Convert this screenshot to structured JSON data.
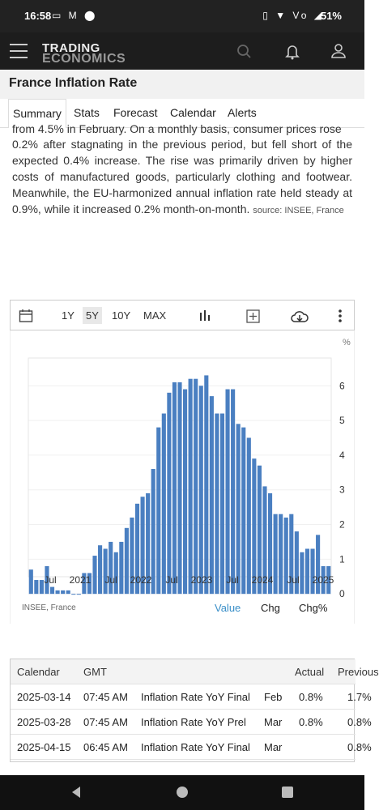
{
  "status": {
    "time": "16:58",
    "battery": "51%",
    "left_icons": "▭ M ⬤",
    "right_icons": "▯ ▼ Vo ◢"
  },
  "app": {
    "logo_line1": "TRADING",
    "logo_line2": "ECONOMICS"
  },
  "page": {
    "title": "France Inflation Rate"
  },
  "tabs": [
    "Summary",
    "Stats",
    "Forecast",
    "Calendar",
    "Alerts"
  ],
  "article": {
    "first_line": "from 4.5% in February. On a monthly basis, consumer prices rose",
    "body": "0.2% after stagnating in the previous period, but fell short of the expected 0.4% increase. The rise was primarily driven by higher costs of manufactured goods, particularly clothing and footwear. Meanwhile, the EU-harmonized annual inflation rate held steady at 0.9%, while it increased 0.2% month-on-month.",
    "source": "source: INSEE, France"
  },
  "chart_toolbar": {
    "r1": "1Y",
    "r5": "5Y",
    "r10": "10Y",
    "rmax": "MAX"
  },
  "chart_footer": {
    "source": "INSEE, France",
    "value": "Value",
    "chg": "Chg",
    "chgpct": "Chg%"
  },
  "chart_data": {
    "type": "bar",
    "ylabel": "%",
    "ylim": [
      -0.3,
      6.8
    ],
    "yticks": [
      0,
      1,
      2,
      3,
      4,
      5,
      6
    ],
    "xticks": [
      "Jul",
      "2021",
      "Jul",
      "2022",
      "Jul",
      "2023",
      "Jul",
      "2024",
      "Jul",
      "2025"
    ],
    "color": "#4a7fc1",
    "values": [
      0.7,
      0.4,
      0.4,
      0.8,
      0.2,
      0.1,
      0.1,
      0.1,
      0.0,
      0.0,
      0.6,
      0.6,
      1.1,
      1.4,
      1.3,
      1.5,
      1.2,
      1.5,
      1.9,
      2.2,
      2.6,
      2.8,
      2.9,
      3.6,
      4.8,
      5.2,
      5.8,
      6.1,
      6.1,
      5.9,
      6.2,
      6.2,
      6.0,
      6.3,
      5.7,
      5.2,
      5.2,
      5.9,
      5.9,
      4.9,
      4.8,
      4.5,
      3.9,
      3.7,
      3.1,
      2.9,
      2.3,
      2.3,
      2.2,
      2.3,
      1.8,
      1.2,
      1.3,
      1.3,
      1.7,
      0.8,
      0.8
    ]
  },
  "calendar": {
    "headers": {
      "calendar": "Calendar",
      "gmt": "GMT",
      "actual": "Actual",
      "previous": "Previous"
    },
    "rows": [
      {
        "date": "2025-03-14",
        "time": "07:45 AM",
        "event": "Inflation Rate YoY Final",
        "ref": "Feb",
        "actual": "0.8%",
        "previous": "1.7%"
      },
      {
        "date": "2025-03-28",
        "time": "07:45 AM",
        "event": "Inflation Rate YoY Prel",
        "ref": "Mar",
        "actual": "0.8%",
        "previous": "0.8%"
      },
      {
        "date": "2025-04-15",
        "time": "06:45 AM",
        "event": "Inflation Rate YoY Final",
        "ref": "Mar",
        "actual": "",
        "previous": "0.8%"
      }
    ]
  }
}
